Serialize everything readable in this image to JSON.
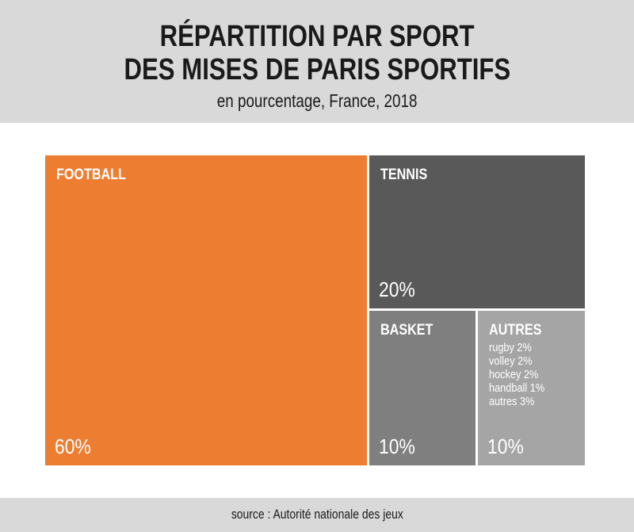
{
  "chart_data": {
    "type": "treemap",
    "title_line1": "RÉPARTITION PAR SPORT",
    "title_line2": "DES MISES DE PARIS SPORTIFS",
    "subtitle": "en pourcentage, France, 2018",
    "unit": "%",
    "items": [
      {
        "name": "FOOTBALL",
        "value": 60,
        "label": "60%",
        "color": "#ED7D31"
      },
      {
        "name": "TENNIS",
        "value": 20,
        "label": "20%",
        "color": "#595959"
      },
      {
        "name": "BASKET",
        "value": 10,
        "label": "10%",
        "color": "#7F7F7F"
      },
      {
        "name": "AUTRES",
        "value": 10,
        "label": "10%",
        "color": "#A5A5A5",
        "children": [
          {
            "name": "rugby",
            "value": 2,
            "text": "rugby 2%"
          },
          {
            "name": "volley",
            "value": 2,
            "text": "volley 2%"
          },
          {
            "name": "hockey",
            "value": 2,
            "text": "hockey 2%"
          },
          {
            "name": "handball",
            "value": 1,
            "text": "handball 1%"
          },
          {
            "name": "autres",
            "value": 3,
            "text": "autres 3%"
          }
        ]
      }
    ],
    "source": "source : Autorité nationale des jeux"
  }
}
